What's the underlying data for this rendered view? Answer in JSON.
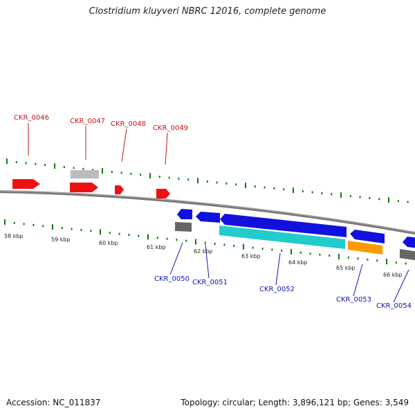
{
  "title": "Clostridium kluyveri NBRC 12016, complete genome",
  "footer": {
    "accession": "Accession: NC_011837",
    "summary": "Topology: circular; Length: 3,896,121 bp; Genes: 3,549"
  },
  "colors": {
    "forward_gene": "#ee1111",
    "reverse_gene": "#1111dd",
    "rrna_gray": "#bbbbbb",
    "dark_gray": "#666666",
    "cyan": "#22cccc",
    "orange": "#ff9900",
    "tick_green": "#117711",
    "backbone": "#777777",
    "label_red": "#cc1111",
    "label_blue": "#1111bb"
  },
  "scale_labels": [
    "58 kbp",
    "59 kbp",
    "60 kbp",
    "61 kbp",
    "62 kbp",
    "63 kbp",
    "64 kbp",
    "65 kbp",
    "66 kbp"
  ],
  "genes_top": [
    {
      "id": "CKR_0046"
    },
    {
      "id": "CKR_0047"
    },
    {
      "id": "CKR_0048"
    },
    {
      "id": "CKR_0049"
    }
  ],
  "genes_bottom": [
    {
      "id": "CKR_0050"
    },
    {
      "id": "CKR_0051"
    },
    {
      "id": "CKR_0052"
    },
    {
      "id": "CKR_0053"
    },
    {
      "id": "CKR_0054"
    }
  ]
}
